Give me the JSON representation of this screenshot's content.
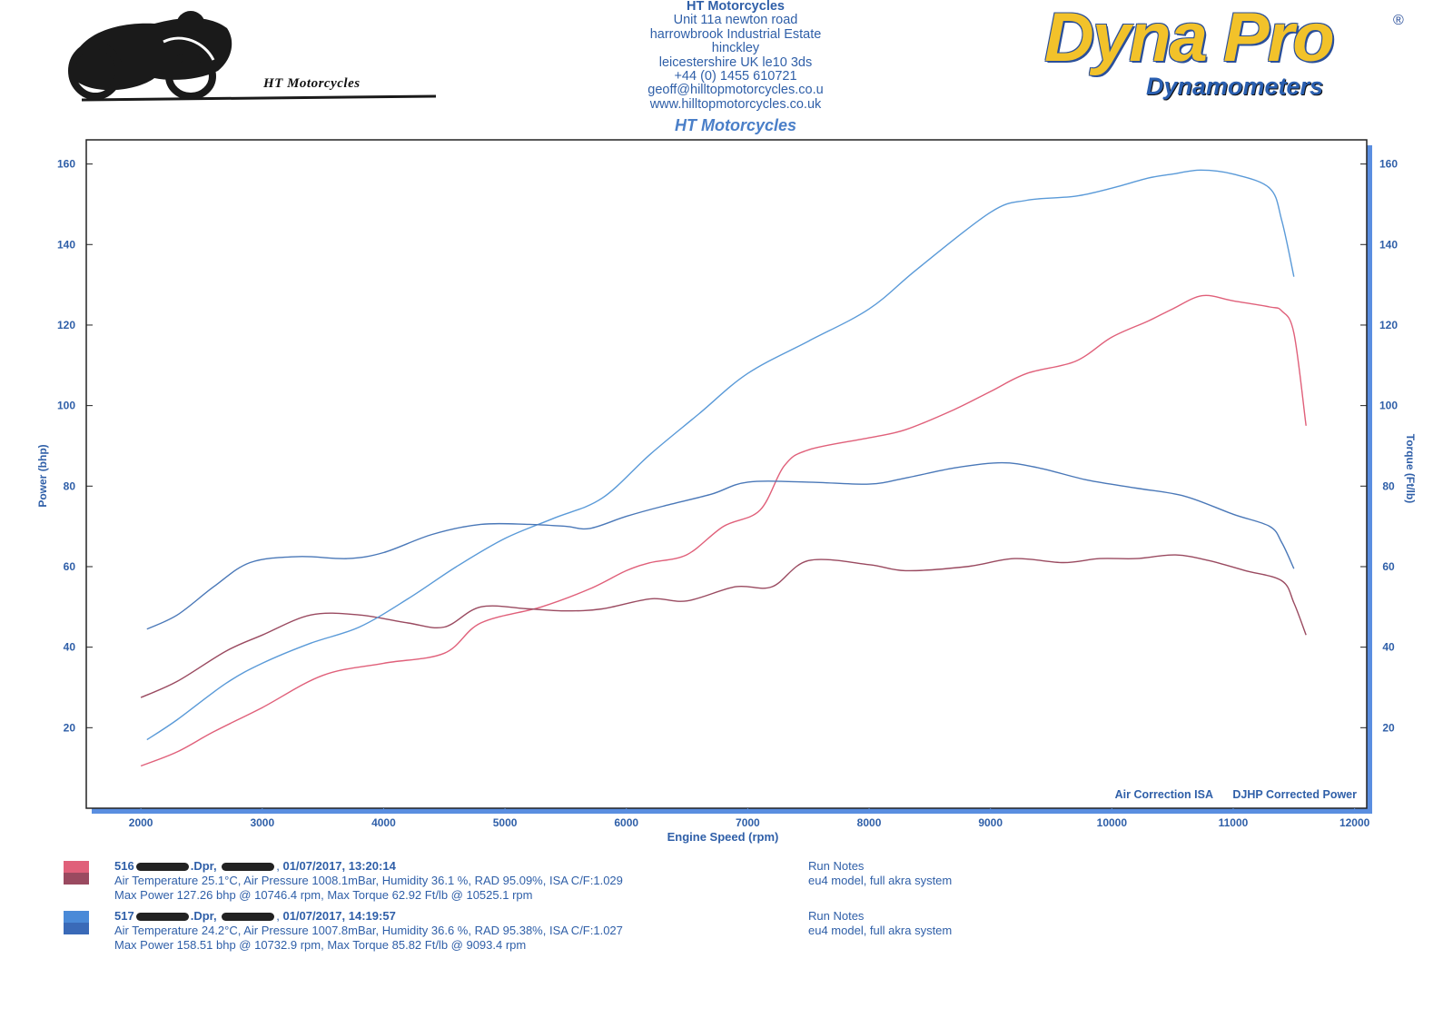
{
  "header": {
    "company": "HT Motorcycles",
    "address_lines": [
      "Unit 11a newton road",
      "harrowbrook  Industrial Estate",
      "hinckley",
      "leicestershire UK le10 3ds",
      "+44 (0) 1455 610721",
      "geoff@hilltopmotorcycles.co.u",
      "www.hilltopmotorcycles.co.uk"
    ],
    "subtitle": "HT Motorcycles",
    "logo_left_caption": "HT Motorcycles",
    "brand_name": "Dyna Pro",
    "brand_registered": "®",
    "brand_sub": "Dynamometers"
  },
  "chart_data": {
    "type": "line",
    "xlabel": "Engine Speed (rpm)",
    "ylabel": "Power (bhp)",
    "y2label": "Torque (Ft/lb)",
    "xlim": [
      1550,
      12100
    ],
    "ylim": [
      0,
      166
    ],
    "y2lim": [
      0,
      166
    ],
    "x_ticks": [
      2000,
      3000,
      4000,
      5000,
      6000,
      7000,
      8000,
      9000,
      10000,
      11000,
      12000
    ],
    "y_ticks": [
      20,
      40,
      60,
      80,
      100,
      120,
      140,
      160
    ],
    "y2_ticks": [
      20,
      40,
      60,
      80,
      100,
      120,
      140,
      160
    ],
    "annotations": [
      "Air Correction ISA",
      "DJHP Corrected Power"
    ],
    "colors": {
      "run516_power": "#e0607a",
      "run516_torque": "#9a4a60",
      "run517_power": "#5a9ad8",
      "run517_torque": "#4a78b8"
    },
    "series": [
      {
        "run": "516",
        "kind": "power",
        "color": "#e0607a",
        "x": [
          2000,
          2300,
          2600,
          3000,
          3500,
          4000,
          4500,
          4800,
          5300,
          5700,
          6000,
          6200,
          6500,
          6800,
          7100,
          7300,
          7500,
          8000,
          8300,
          8700,
          9000,
          9300,
          9700,
          10000,
          10300,
          10500,
          10746,
          11000,
          11300,
          11400,
          11500,
          11600
        ],
        "y": [
          10.5,
          14,
          19,
          25,
          33,
          36,
          38.5,
          46,
          50,
          54.5,
          59,
          61,
          63,
          70,
          74,
          85,
          89,
          92,
          94,
          99,
          103.5,
          108,
          111,
          117,
          121,
          124,
          127.3,
          126,
          124.5,
          123.5,
          118,
          95
        ]
      },
      {
        "run": "516",
        "kind": "torque",
        "color": "#9a4a60",
        "x": [
          2000,
          2300,
          2700,
          3000,
          3400,
          3800,
          4200,
          4500,
          4800,
          5200,
          5500,
          5800,
          6200,
          6500,
          6900,
          7200,
          7500,
          8000,
          8300,
          8800,
          9200,
          9600,
          9900,
          10200,
          10525,
          10800,
          11100,
          11400,
          11500,
          11600
        ],
        "y": [
          27.5,
          31.5,
          39,
          43,
          48,
          48,
          46,
          45,
          50,
          49.5,
          49,
          49.5,
          52,
          51.5,
          55,
          55,
          61.5,
          60.5,
          59,
          60,
          62,
          61,
          62,
          62,
          62.9,
          61.5,
          59,
          56.5,
          51,
          43
        ]
      },
      {
        "run": "517",
        "kind": "power",
        "color": "#5a9ad8",
        "x": [
          2050,
          2300,
          2700,
          3000,
          3400,
          3800,
          4200,
          4600,
          5000,
          5400,
          5800,
          6200,
          6600,
          7000,
          7500,
          8000,
          8400,
          9000,
          9300,
          9700,
          10000,
          10300,
          10500,
          10733,
          11000,
          11300,
          11400,
          11500
        ],
        "y": [
          17,
          22,
          31,
          36,
          41,
          45,
          52,
          60,
          67,
          72,
          77,
          88,
          98,
          108,
          116,
          124,
          134,
          148,
          151,
          152,
          154,
          156.5,
          157.5,
          158.5,
          157.5,
          154,
          146,
          132
        ]
      },
      {
        "run": "517",
        "kind": "torque",
        "color": "#4a78b8",
        "x": [
          2050,
          2300,
          2600,
          2900,
          3300,
          3700,
          4000,
          4400,
          4800,
          5200,
          5500,
          5700,
          6000,
          6300,
          6700,
          7000,
          7500,
          8000,
          8300,
          8700,
          9093,
          9400,
          9800,
          10200,
          10600,
          11000,
          11300,
          11400,
          11500
        ],
        "y": [
          44.5,
          48,
          55,
          61,
          62.5,
          62,
          63.5,
          68,
          70.5,
          70.5,
          70,
          69.5,
          72.5,
          75,
          78,
          81,
          81,
          80.5,
          82,
          84.5,
          85.8,
          84.5,
          81.5,
          79.5,
          77.5,
          73,
          70,
          66,
          59.5
        ]
      }
    ]
  },
  "runs": [
    {
      "id": "516",
      "file_suffix": ".Dpr,",
      "date_time": "01/07/2017,   13:20:14",
      "conditions": "Air Temperature 25.1°C, Air Pressure 1008.1mBar, Humidity 36.1 %, RAD 95.09%,   ISA  C/F:1.029",
      "max_line": "Max Power 127.26 bhp @ 10746.4 rpm, Max Torque 62.92 Ft/lb @ 10525.1 rpm",
      "notes_title": "Run Notes",
      "notes": "eu4 model, full akra system",
      "swatch_top": "#e0607a",
      "swatch_bottom": "#9a4a60"
    },
    {
      "id": "517",
      "file_suffix": ".Dpr,",
      "date_time": "01/07/2017,   14:19:57",
      "conditions": "Air Temperature 24.2°C, Air Pressure 1007.8mBar, Humidity 36.6 %, RAD 95.38%,   ISA  C/F:1.027",
      "max_line": "Max Power 158.51 bhp @ 10732.9 rpm, Max Torque 85.82 Ft/lb @ 9093.4 rpm",
      "notes_title": "Run Notes",
      "notes": "eu4 model, full akra system",
      "swatch_top": "#4a8ad8",
      "swatch_bottom": "#3a6ab8"
    }
  ]
}
